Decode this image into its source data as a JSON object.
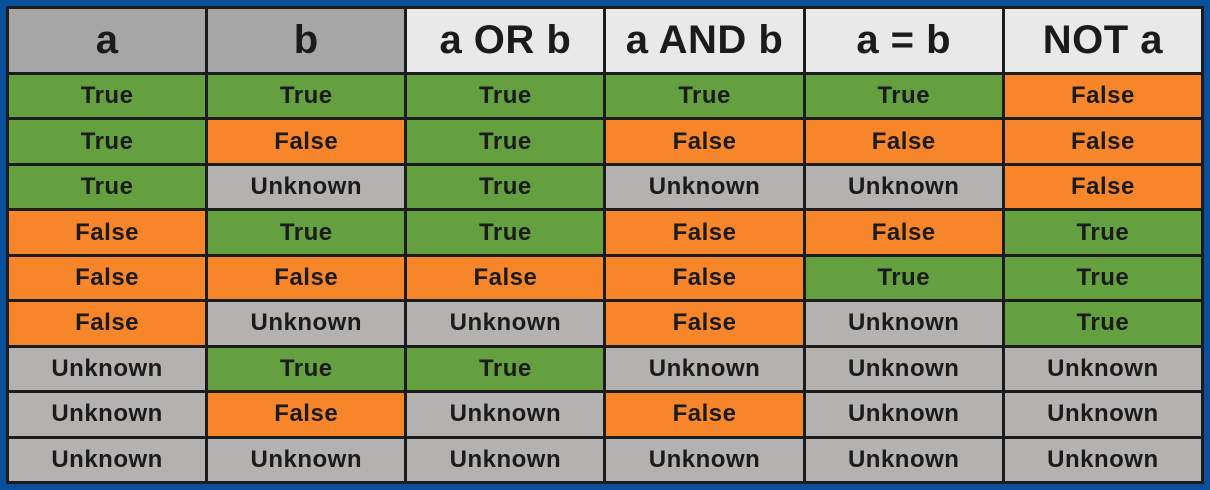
{
  "table": {
    "headers": [
      "a",
      "b",
      "a OR b",
      "a AND b",
      "a = b",
      "NOT a"
    ],
    "header_kinds": [
      "input",
      "input",
      "output",
      "output",
      "output",
      "output"
    ],
    "rows": [
      [
        "True",
        "True",
        "True",
        "True",
        "True",
        "False"
      ],
      [
        "True",
        "False",
        "True",
        "False",
        "False",
        "False"
      ],
      [
        "True",
        "Unknown",
        "True",
        "Unknown",
        "Unknown",
        "False"
      ],
      [
        "False",
        "True",
        "True",
        "False",
        "False",
        "True"
      ],
      [
        "False",
        "False",
        "False",
        "False",
        "True",
        "True"
      ],
      [
        "False",
        "Unknown",
        "Unknown",
        "False",
        "Unknown",
        "True"
      ],
      [
        "Unknown",
        "True",
        "True",
        "Unknown",
        "Unknown",
        "Unknown"
      ],
      [
        "Unknown",
        "False",
        "Unknown",
        "False",
        "Unknown",
        "Unknown"
      ],
      [
        "Unknown",
        "Unknown",
        "Unknown",
        "Unknown",
        "Unknown",
        "Unknown"
      ]
    ]
  },
  "colors": {
    "true": "#64a040",
    "false": "#f7852a",
    "unknown": "#b4b1b1",
    "input_header": "#a6a6a6",
    "output_header": "#e9e9e9",
    "frame": "#0a4f9c",
    "grid": "#1c1c1c"
  }
}
